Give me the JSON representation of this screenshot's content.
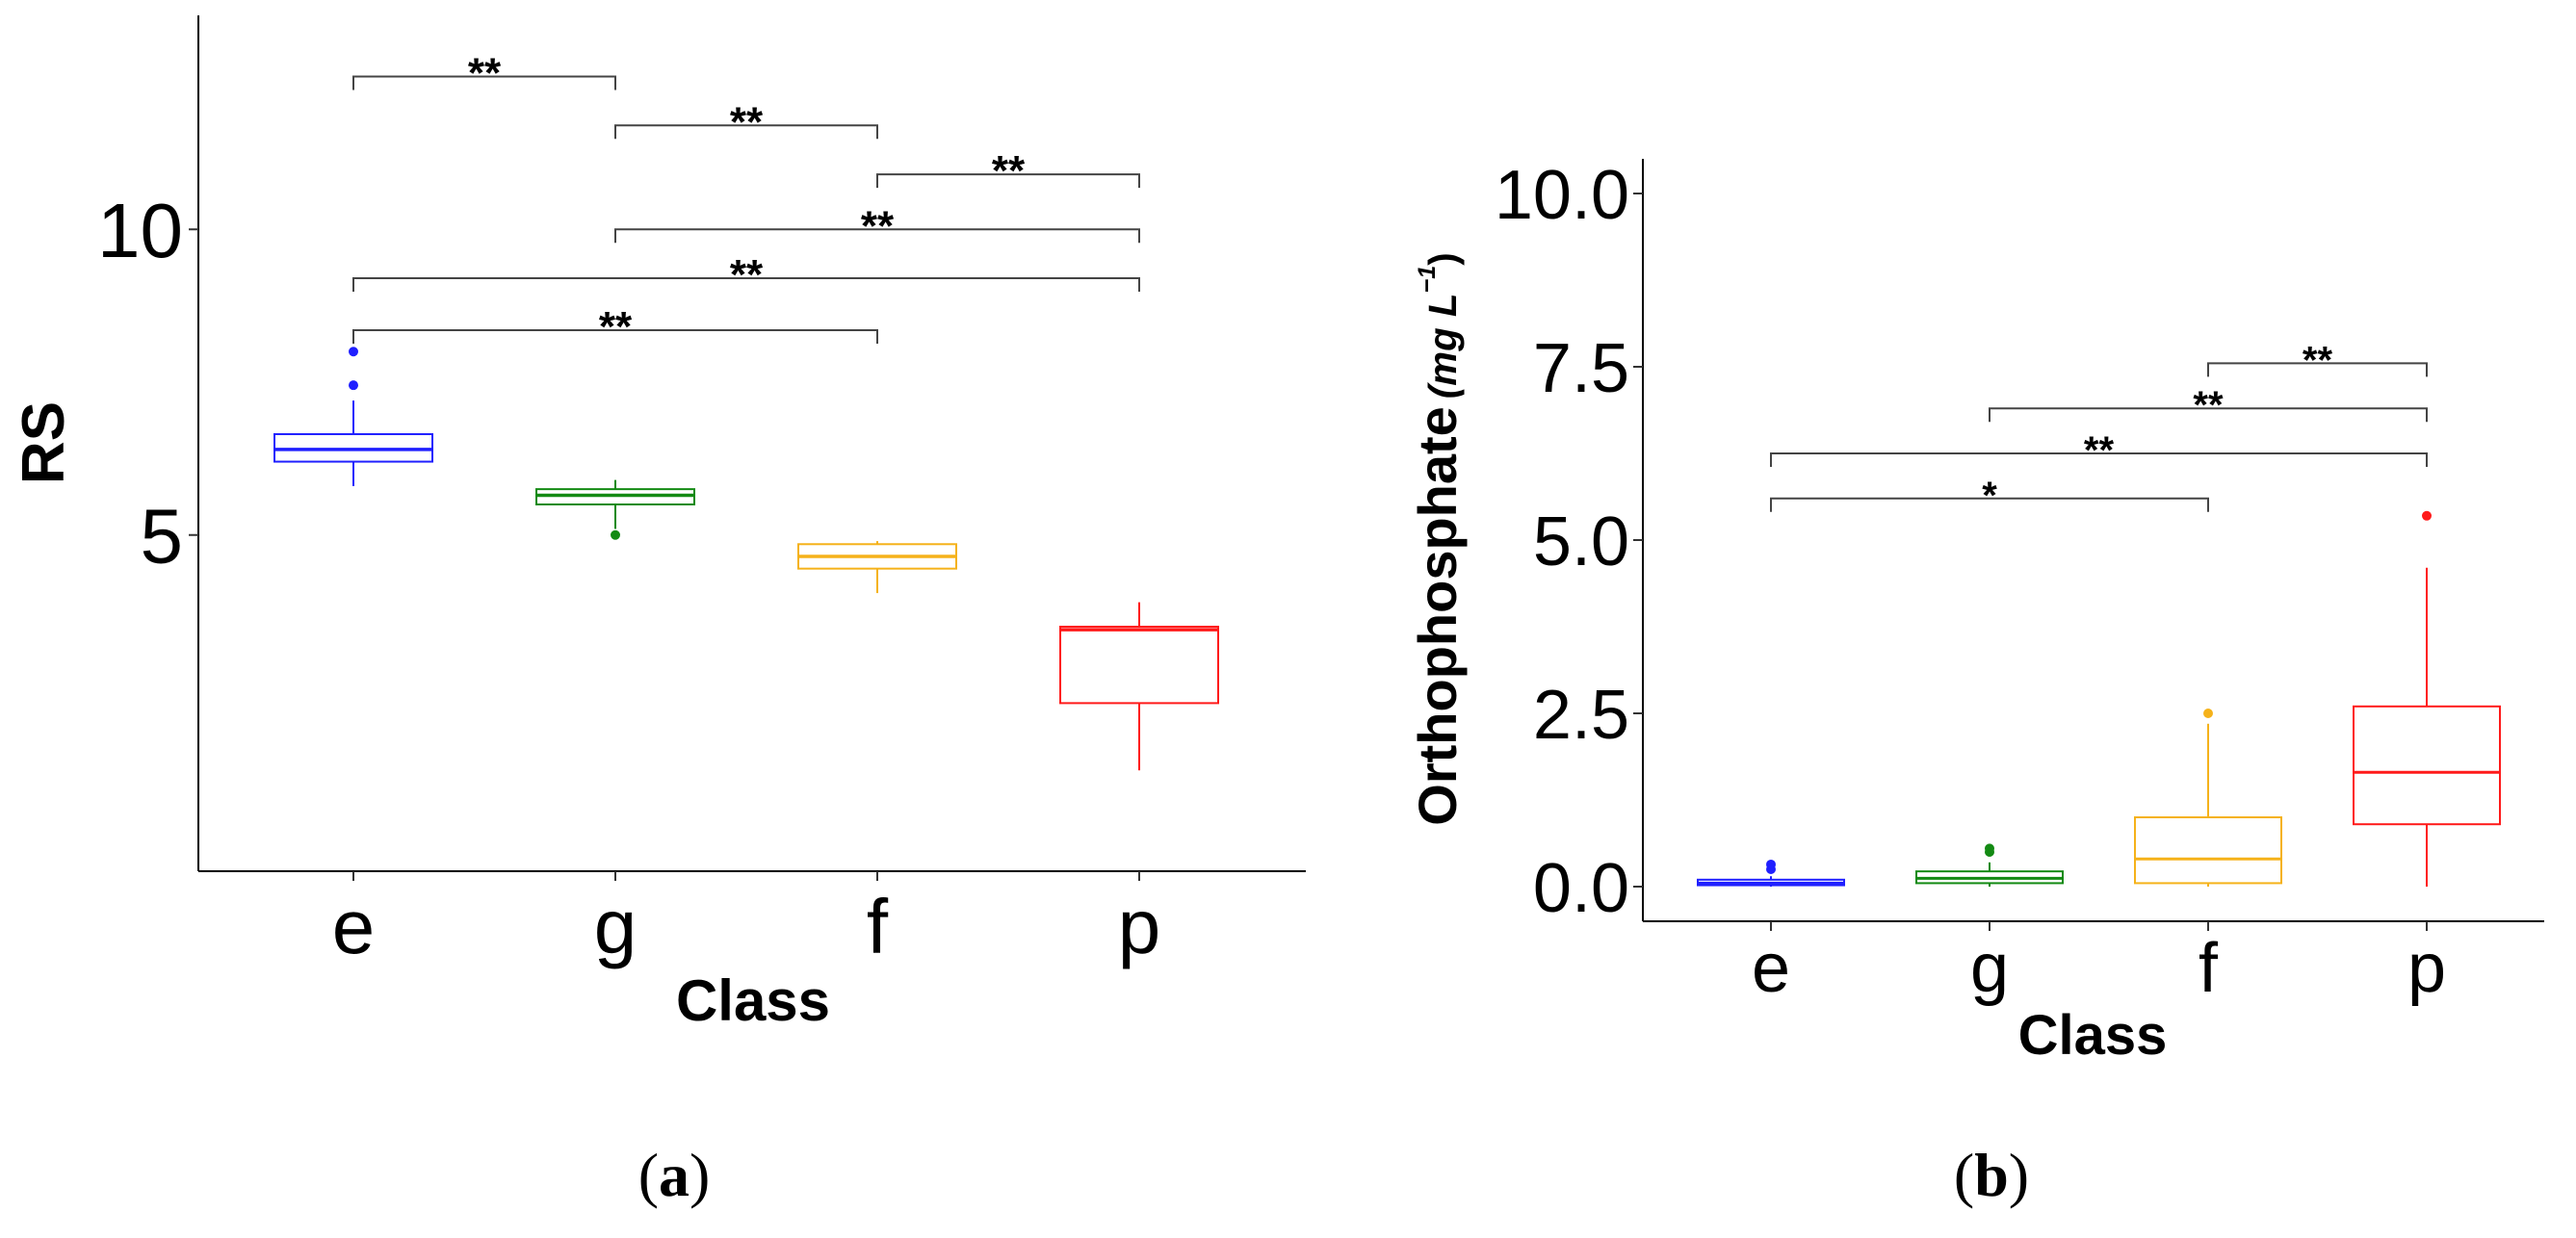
{
  "figure": {
    "panels": [
      {
        "label_open": "(",
        "label_letter": "a",
        "label_close": ")"
      },
      {
        "label_open": "(",
        "label_letter": "b",
        "label_close": ")"
      }
    ]
  },
  "chart_data": [
    {
      "type": "box",
      "panel": "a",
      "title": "",
      "xlabel": "Class",
      "ylabel": "RS",
      "ylabel_unit": "",
      "categories": [
        "e",
        "g",
        "f",
        "p"
      ],
      "colors": [
        "#1f1fff",
        "#138a13",
        "#f5b21a",
        "#ff1a1a"
      ],
      "ylim": [
        -0.5,
        13.5
      ],
      "yticks": [
        5,
        10
      ],
      "ytick_labels": [
        "5",
        "10"
      ],
      "boxes": [
        {
          "category": "e",
          "whisker_low": 5.8,
          "q1": 6.2,
          "median": 6.4,
          "q3": 6.65,
          "whisker_high": 7.2,
          "outliers": [
            7.45,
            8.0
          ]
        },
        {
          "category": "g",
          "whisker_low": 5.1,
          "q1": 5.5,
          "median": 5.65,
          "q3": 5.75,
          "whisker_high": 5.9,
          "outliers": [
            5.0
          ]
        },
        {
          "category": "f",
          "whisker_low": 4.05,
          "q1": 4.45,
          "median": 4.65,
          "q3": 4.85,
          "whisker_high": 4.9,
          "outliers": []
        },
        {
          "category": "p",
          "whisker_low": 1.15,
          "q1": 2.25,
          "median": 3.45,
          "q3": 3.5,
          "whisker_high": 3.9,
          "outliers": []
        }
      ],
      "significance": [
        {
          "from": "e",
          "to": "g",
          "y": 12.5,
          "label": "**"
        },
        {
          "from": "g",
          "to": "f",
          "y": 11.7,
          "label": "**"
        },
        {
          "from": "f",
          "to": "p",
          "y": 10.9,
          "label": "**"
        },
        {
          "from": "g",
          "to": "p",
          "y": 10.0,
          "label": "**"
        },
        {
          "from": "e",
          "to": "p",
          "y": 9.2,
          "label": "**"
        },
        {
          "from": "e",
          "to": "f",
          "y": 8.35,
          "label": "**"
        }
      ]
    },
    {
      "type": "box",
      "panel": "b",
      "title": "",
      "xlabel": "Class",
      "ylabel": "Orthophosphate",
      "ylabel_unit": "(mg L",
      "ylabel_unit_exp": "−1",
      "ylabel_unit_close": ")",
      "categories": [
        "e",
        "g",
        "f",
        "p"
      ],
      "colors": [
        "#1f1fff",
        "#138a13",
        "#f5b21a",
        "#ff1a1a"
      ],
      "ylim": [
        -0.5,
        10.5
      ],
      "yticks": [
        0,
        2.5,
        5,
        7.5,
        10
      ],
      "ytick_labels": [
        "0.0",
        "2.5",
        "5.0",
        "7.5",
        "10.0"
      ],
      "boxes": [
        {
          "category": "e",
          "whisker_low": 0.0,
          "q1": 0.02,
          "median": 0.05,
          "q3": 0.1,
          "whisker_high": 0.15,
          "outliers": [
            0.25,
            0.32
          ]
        },
        {
          "category": "g",
          "whisker_low": 0.0,
          "q1": 0.05,
          "median": 0.12,
          "q3": 0.22,
          "whisker_high": 0.35,
          "outliers": [
            0.5,
            0.55
          ]
        },
        {
          "category": "f",
          "whisker_low": 0.0,
          "q1": 0.05,
          "median": 0.4,
          "q3": 1.0,
          "whisker_high": 2.35,
          "outliers": [
            2.5
          ]
        },
        {
          "category": "p",
          "whisker_low": 0.0,
          "q1": 0.9,
          "median": 1.65,
          "q3": 2.6,
          "whisker_high": 4.6,
          "outliers": [
            5.35
          ]
        }
      ],
      "significance": [
        {
          "from": "f",
          "to": "p",
          "y": 7.55,
          "label": "**"
        },
        {
          "from": "g",
          "to": "p",
          "y": 6.9,
          "label": "**"
        },
        {
          "from": "e",
          "to": "p",
          "y": 6.25,
          "label": "**"
        },
        {
          "from": "e",
          "to": "f",
          "y": 5.6,
          "label": "*"
        }
      ]
    }
  ]
}
